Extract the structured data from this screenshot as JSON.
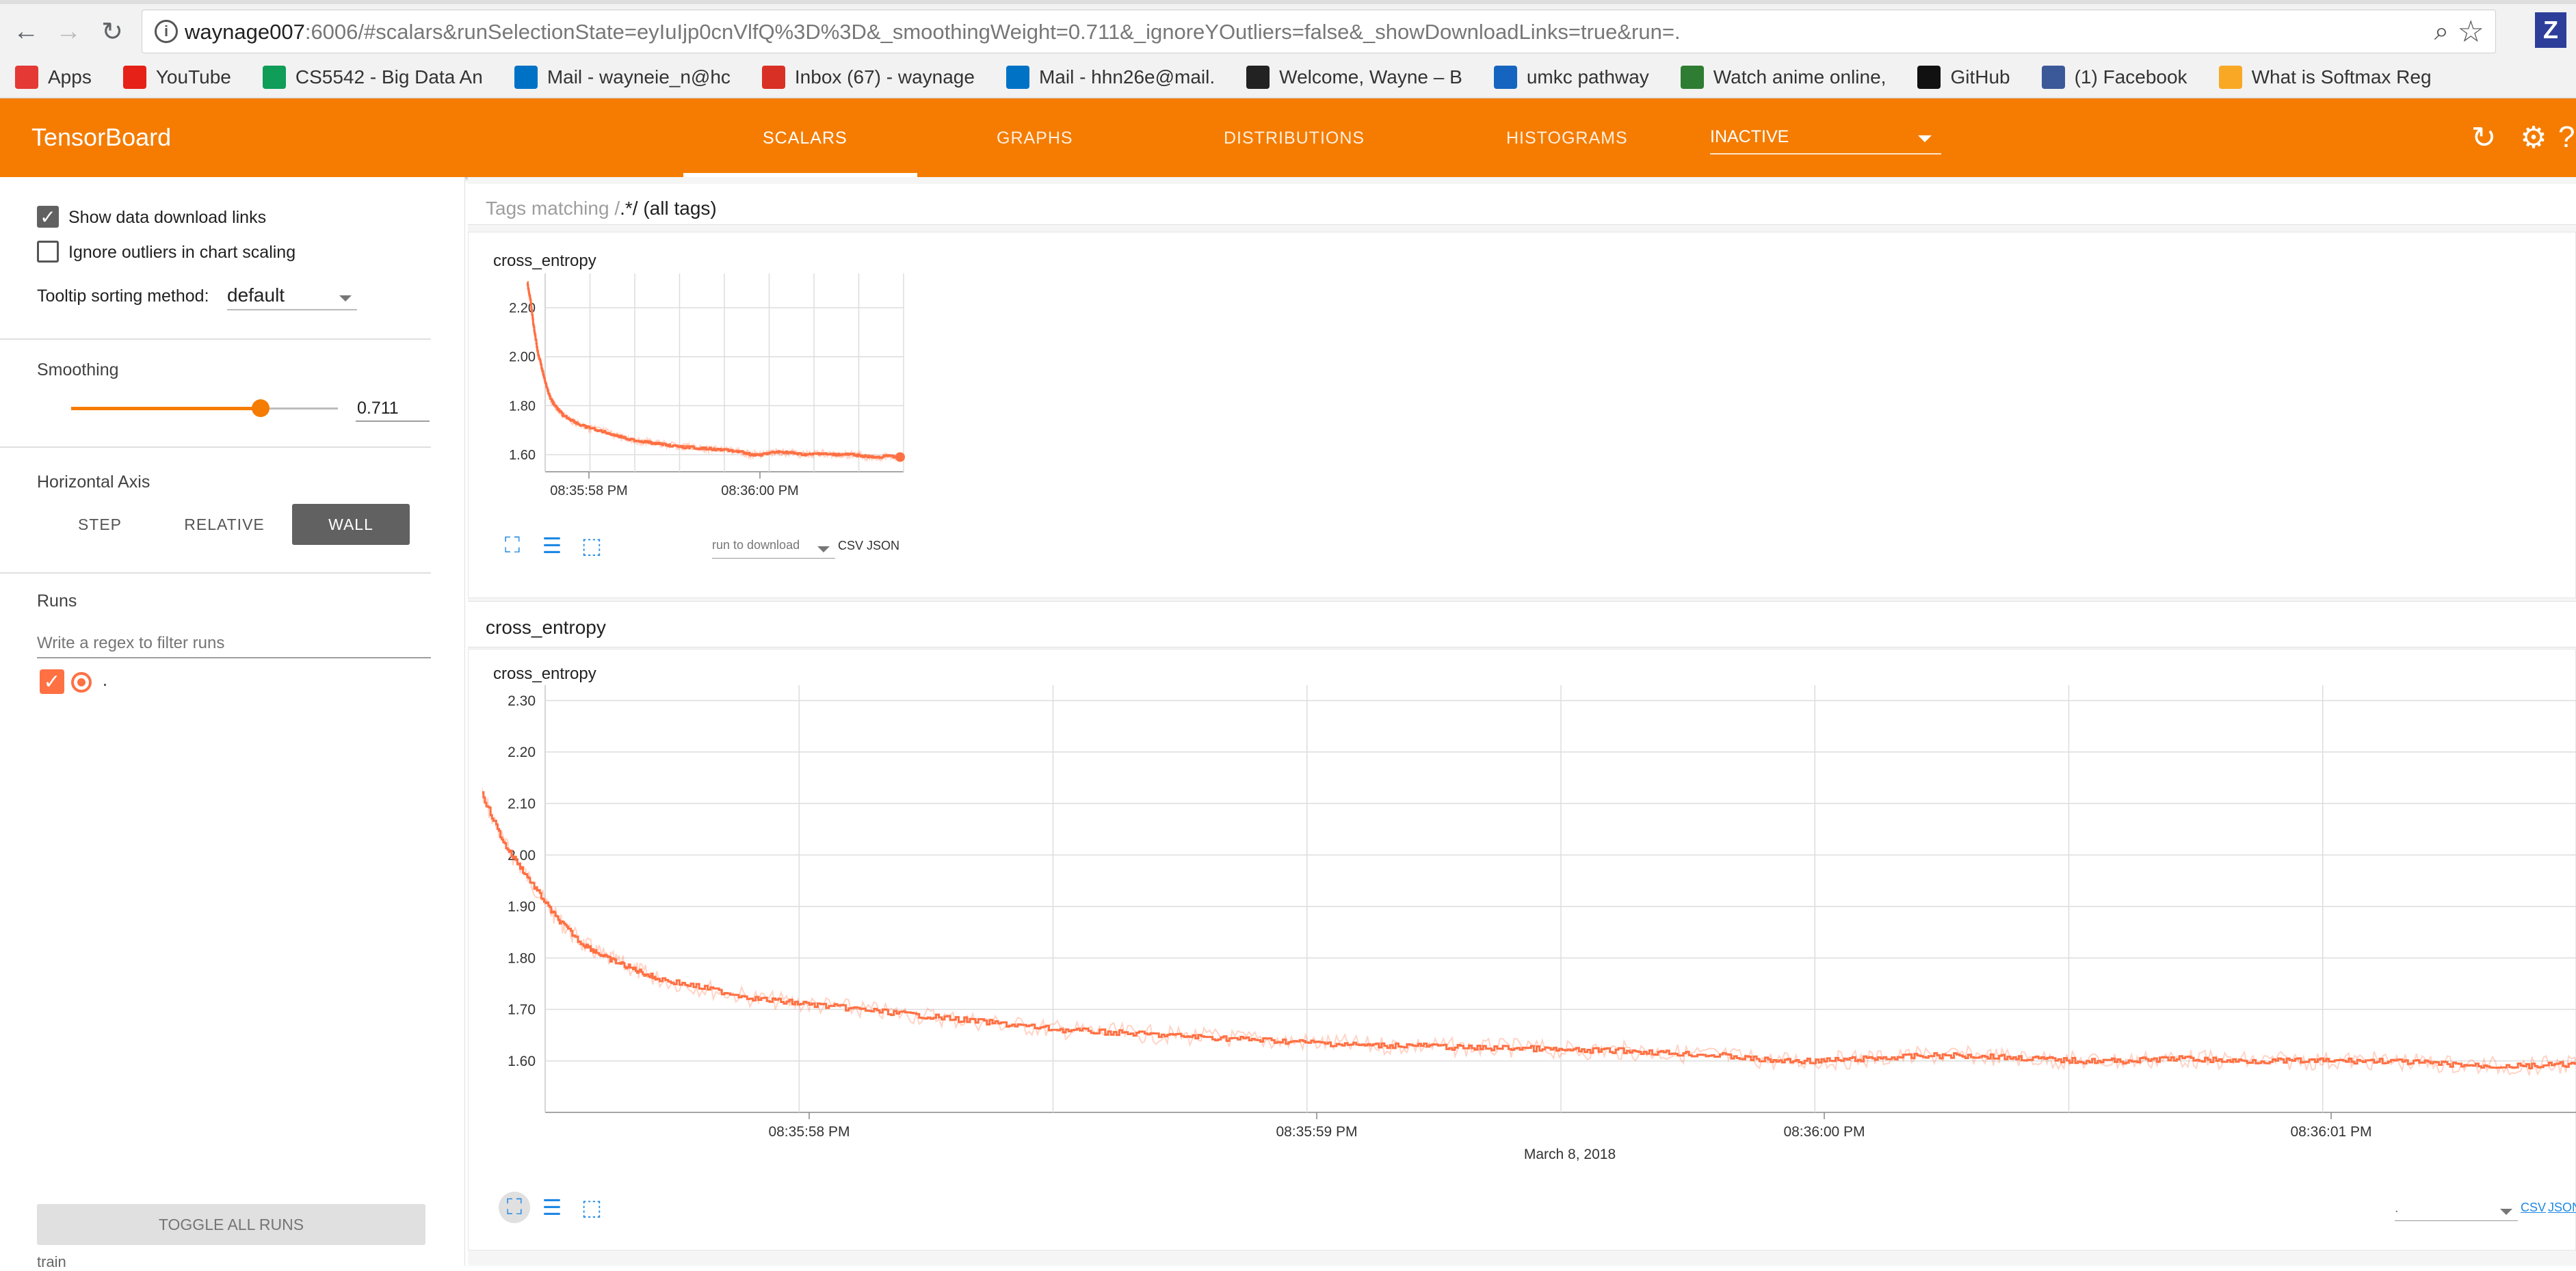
{
  "browser": {
    "url_host": "waynage007",
    "url_rest": ":6006/#scalars&runSelectionState=eyIuIjp0cnVlfQ%3D%3D&_smoothingWeight=0.711&_ignoreYOutliers=false&_showDownloadLinks=true&run=.",
    "bookmarks": [
      {
        "label": "Apps",
        "icon": "apps-grid-icon",
        "color": "#e53935"
      },
      {
        "label": "YouTube",
        "icon": "youtube-icon",
        "color": "#e62117"
      },
      {
        "label": "CS5542 - Big Data An",
        "icon": "sheets-icon",
        "color": "#0f9d58"
      },
      {
        "label": "Mail - wayneie_n@hc",
        "icon": "outlook-icon",
        "color": "#0072c6"
      },
      {
        "label": "Inbox (67) - waynage",
        "icon": "gmail-icon",
        "color": "#d93025"
      },
      {
        "label": "Mail - hhn26e@mail.",
        "icon": "outlook-icon",
        "color": "#0072c6"
      },
      {
        "label": "Welcome, Wayne – B",
        "icon": "blackboard-icon",
        "color": "#222222"
      },
      {
        "label": "umkc pathway",
        "icon": "pathway-icon",
        "color": "#1565c0"
      },
      {
        "label": "Watch anime online,",
        "icon": "anime-icon",
        "color": "#2e7d32"
      },
      {
        "label": "GitHub",
        "icon": "github-icon",
        "color": "#111111"
      },
      {
        "label": "(1) Facebook",
        "icon": "facebook-icon",
        "color": "#3b5998"
      },
      {
        "label": "What is Softmax Reg",
        "icon": "k-icon",
        "color": "#f9a825"
      }
    ]
  },
  "header": {
    "title": "TensorBoard",
    "tabs": [
      "SCALARS",
      "GRAPHS",
      "DISTRIBUTIONS",
      "HISTOGRAMS"
    ],
    "inactive_label": "INACTIVE",
    "accent": "#f57c00"
  },
  "sidebar": {
    "show_download_label": "Show data download links",
    "ignore_outliers_label": "Ignore outliers in chart scaling",
    "tooltip_label": "Tooltip sorting method:",
    "tooltip_value": "default",
    "smoothing_title": "Smoothing",
    "smoothing_value": "0.711",
    "smoothing_fraction": 0.711,
    "haxis_title": "Horizontal Axis",
    "haxis_options": [
      "STEP",
      "RELATIVE",
      "WALL"
    ],
    "runs_title": "Runs",
    "runs_filter_placeholder": "Write a regex to filter runs",
    "run_name": ".",
    "toggle_label": "TOGGLE ALL RUNS",
    "train_label": "train"
  },
  "main": {
    "tag_filter_prefix": "Tags matching /",
    "tag_filter_regex": ".*",
    "tag_filter_suffix": "/ (all tags)",
    "card1_title": "cross_entropy",
    "group_title": "cross_entropy",
    "card2_title": "cross_entropy",
    "run_to_download": "run to download",
    "run_selected": ".",
    "csv_label": "CSV",
    "json_label": "JSON"
  },
  "chart_data": [
    {
      "type": "line",
      "name": "cross_entropy-small",
      "ylabel_ticks": [
        "1.60",
        "1.80",
        "2.00",
        "2.20"
      ],
      "yticks": [
        1.6,
        1.8,
        2.0,
        2.2
      ],
      "ylim": [
        1.53,
        2.34
      ],
      "xticks": [
        "08:35:58 PM",
        "08:36:00 PM"
      ],
      "xlabel": "March 8, 2018",
      "color": "#ff7043"
    },
    {
      "type": "line",
      "name": "cross_entropy-large",
      "ylabel_ticks": [
        "1.60",
        "1.70",
        "1.80",
        "1.90",
        "2.00",
        "2.10",
        "2.20",
        "2.30"
      ],
      "yticks": [
        1.6,
        1.7,
        1.8,
        1.9,
        2.0,
        2.1,
        2.2,
        2.3
      ],
      "ylim": [
        1.5,
        2.33
      ],
      "xticks": [
        "08:35:58 PM",
        "08:35:59 PM",
        "08:36:00 PM",
        "08:36:01 PM"
      ],
      "xlabel": "March 8, 2018",
      "x_range_sec": [
        57.5,
        61.8
      ],
      "series": [
        {
          "x": [
            57.28,
            57.32,
            57.35,
            57.4,
            57.45,
            57.5,
            57.55,
            57.6,
            57.65,
            57.7,
            57.8,
            57.9,
            58.0,
            58.1,
            58.2,
            58.3,
            58.4,
            58.5,
            58.6,
            58.7,
            58.8,
            58.9,
            59.0,
            59.1,
            59.2,
            59.3,
            59.4,
            59.5,
            59.6,
            59.7,
            59.8,
            59.9,
            60.0,
            60.1,
            60.2,
            60.3,
            60.4,
            60.5,
            60.6,
            60.7,
            60.8,
            60.9,
            61.0,
            61.1,
            61.2,
            61.3,
            61.4,
            61.5,
            61.6,
            61.64
          ],
          "y": [
            2.3,
            2.22,
            2.13,
            2.02,
            1.95,
            1.88,
            1.83,
            1.8,
            1.78,
            1.76,
            1.74,
            1.72,
            1.71,
            1.7,
            1.69,
            1.68,
            1.67,
            1.66,
            1.655,
            1.65,
            1.645,
            1.64,
            1.635,
            1.63,
            1.63,
            1.625,
            1.625,
            1.62,
            1.62,
            1.615,
            1.61,
            1.6,
            1.6,
            1.605,
            1.61,
            1.61,
            1.605,
            1.6,
            1.6,
            1.605,
            1.6,
            1.6,
            1.6,
            1.6,
            1.595,
            1.59,
            1.59,
            1.595,
            1.59,
            1.59
          ]
        }
      ],
      "color": "#ff7043"
    }
  ]
}
